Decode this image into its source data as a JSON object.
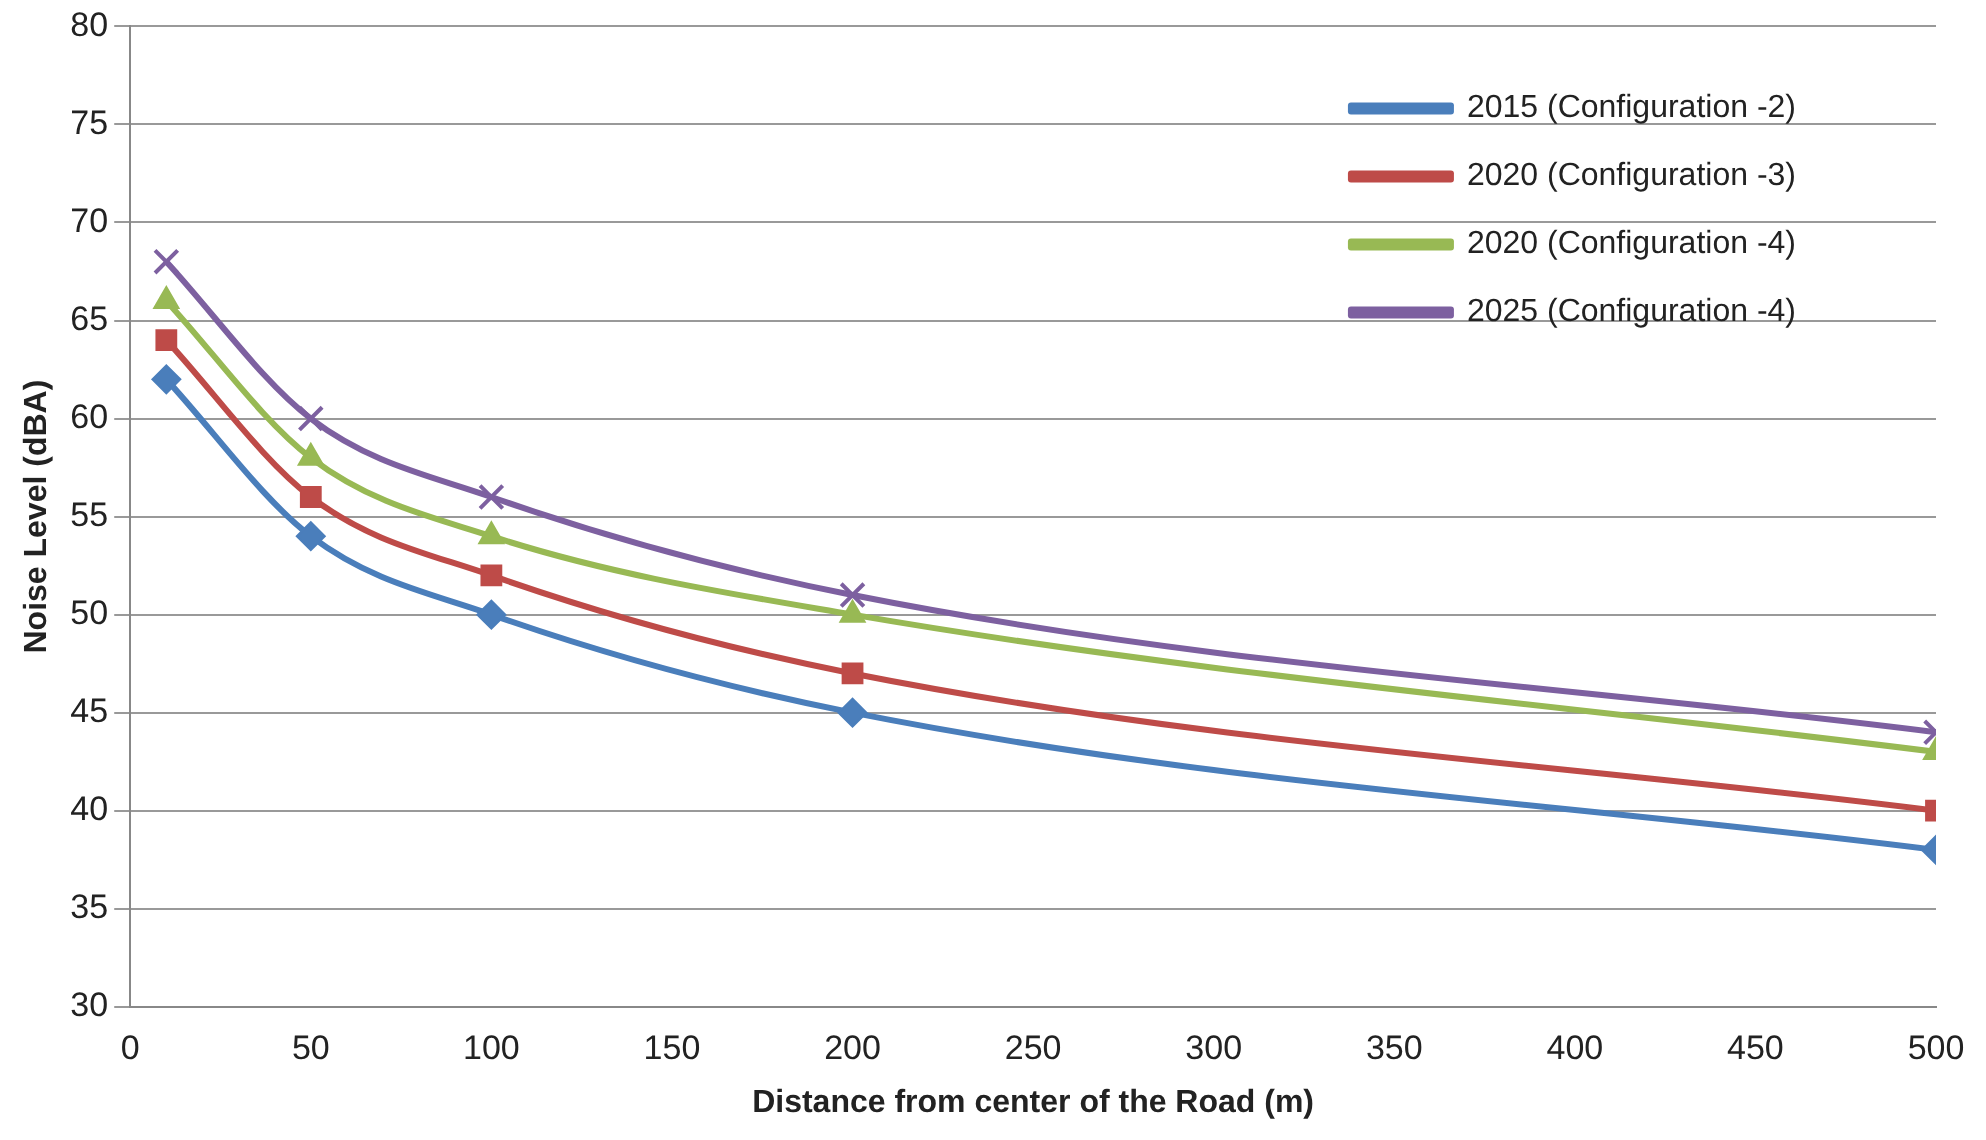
{
  "chart_data": {
    "type": "line",
    "xlabel": "Distance from center of the Road (m)",
    "ylabel": "Noise Level (dBA)",
    "x": [
      10,
      50,
      100,
      200,
      500
    ],
    "series": [
      {
        "name": "2015 (Configuration -2)",
        "color": "#4a7ebb",
        "marker": "diamond",
        "values": [
          62,
          54,
          50,
          45,
          38
        ]
      },
      {
        "name": "2020 (Configuration -3)",
        "color": "#be4b48",
        "marker": "square",
        "values": [
          64,
          56,
          52,
          47,
          40
        ]
      },
      {
        "name": "2020 (Configuration -4)",
        "color": "#98b954",
        "marker": "triangle",
        "values": [
          66,
          58,
          54,
          50,
          43
        ]
      },
      {
        "name": "2025 (Configuration -4)",
        "color": "#7d60a0",
        "marker": "cross",
        "values": [
          68,
          60,
          56,
          51,
          44
        ]
      }
    ],
    "xlim": [
      0,
      500
    ],
    "xticks": [
      0,
      50,
      100,
      150,
      200,
      250,
      300,
      350,
      400,
      450,
      500
    ],
    "ylim": [
      30,
      80
    ],
    "yticks": [
      30,
      35,
      40,
      45,
      50,
      55,
      60,
      65,
      70,
      75,
      80
    ],
    "grid": "y",
    "legend": "top right"
  }
}
